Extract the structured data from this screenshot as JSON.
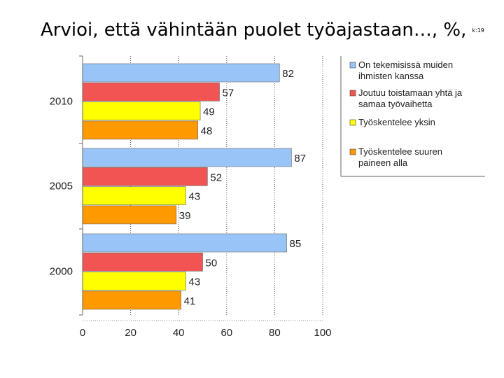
{
  "title": {
    "text": "Arvioi, että vähintään puolet työajastaan…, %,",
    "note": "k:19"
  },
  "chart_data": {
    "type": "bar",
    "orientation": "horizontal",
    "categories": [
      "2010",
      "2005",
      "2000"
    ],
    "series": [
      {
        "name": "On tekemisissä muiden ihmisten kanssa",
        "color": "#99c4f7",
        "values": [
          82,
          87,
          85
        ]
      },
      {
        "name": "Joutuu toistamaan yhtä ja samaa työvaihetta",
        "color": "#f25454",
        "values": [
          57,
          52,
          50
        ]
      },
      {
        "name": "Työskentelee yksin",
        "color": "#ffff00",
        "values": [
          49,
          43,
          43
        ]
      },
      {
        "name": "Työskentelee suuren paineen alla",
        "color": "#ff9900",
        "values": [
          48,
          39,
          41
        ]
      }
    ],
    "xlim": [
      0,
      100
    ],
    "xticks": [
      0,
      20,
      40,
      60,
      80,
      100
    ],
    "grid": "vertical dotted",
    "legend": "right"
  }
}
